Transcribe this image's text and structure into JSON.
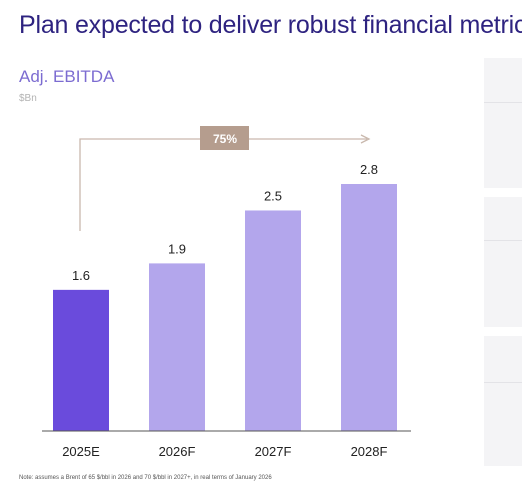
{
  "page": {
    "title": "Plan expected to deliver robust financial metrics",
    "footnote": "Note: assumes a Brent of 65 $/bbl in 2026 and 70 $/bbl in 2027+, in real terms of January 2026"
  },
  "chart_data": {
    "type": "bar",
    "title": "Adj. EBITDA",
    "unit": "$Bn",
    "categories": [
      "2025E",
      "2026F",
      "2027F",
      "2028F"
    ],
    "values": [
      1.6,
      1.9,
      2.5,
      2.8
    ],
    "value_labels": [
      "1.6",
      "1.9",
      "2.5",
      "2.8"
    ],
    "ylim": [
      0,
      2.8
    ],
    "grid": false,
    "legend": "none",
    "bar_colors": [
      "#6a4bdc",
      "#b3a6ec",
      "#b3a6ec",
      "#b3a6ec"
    ],
    "annotation": {
      "label": "75%",
      "from": "2025E",
      "to": "2028F",
      "badge_color": "#b59d8e",
      "arrow_color": "#c9b8ad"
    }
  }
}
